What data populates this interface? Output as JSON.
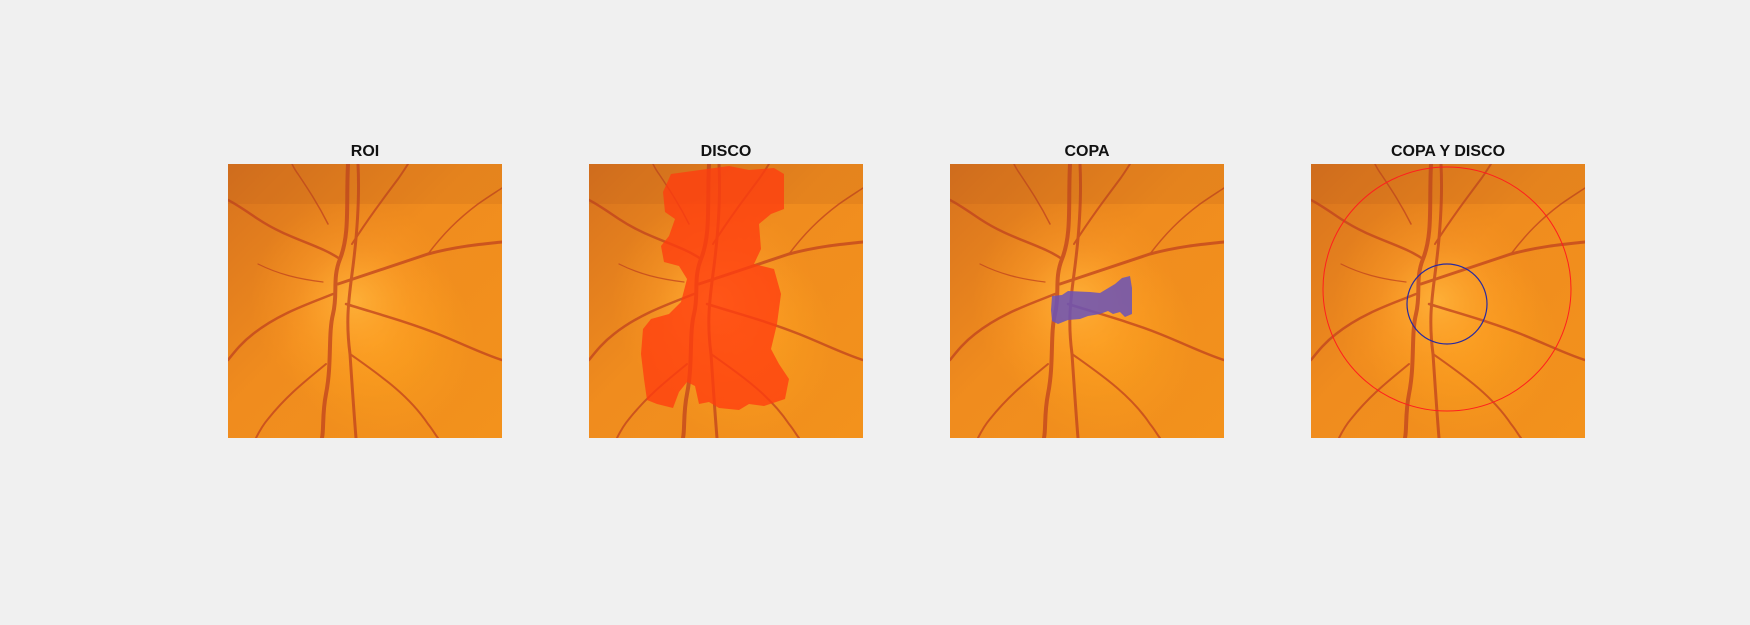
{
  "figure": {
    "panels": [
      {
        "title": "ROI",
        "overlay": "none"
      },
      {
        "title": "DISCO",
        "overlay": "disc-mask",
        "overlay_color": "#ff3c10"
      },
      {
        "title": "COPA",
        "overlay": "cup-mask",
        "overlay_color": "#6a52b8"
      },
      {
        "title": "COPA Y DISCO",
        "overlay": "circles",
        "disc_circle_color": "#ff1e1e",
        "cup_circle_color": "#2a2aa0"
      }
    ]
  },
  "colors": {
    "background": "#f0f0f0",
    "fundus_base": "#f08a1e",
    "vessel": "#c0421e"
  }
}
